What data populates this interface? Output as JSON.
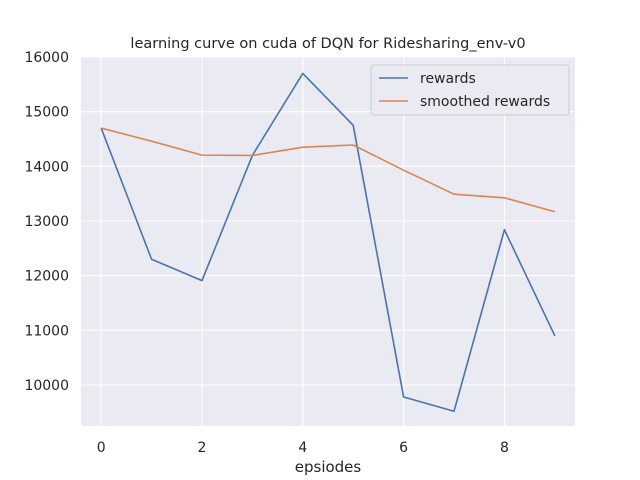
{
  "chart_data": {
    "type": "line",
    "title": "learning curve on cuda of DQN for Ridesharing_env-v0",
    "xlabel": "epsiodes",
    "ylabel": "",
    "x": [
      0,
      1,
      2,
      3,
      4,
      5,
      6,
      7,
      8,
      9
    ],
    "xlim": [
      -0.4,
      9.4
    ],
    "ylim": [
      9250,
      16000
    ],
    "xticks": [
      0,
      2,
      4,
      6,
      8
    ],
    "yticks": [
      10000,
      11000,
      12000,
      13000,
      14000,
      15000,
      16000
    ],
    "grid": true,
    "legend_position": "top-right",
    "series": [
      {
        "name": "rewards",
        "color": "#4c72b0",
        "values": [
          14700,
          12300,
          11910,
          14200,
          15700,
          14750,
          9780,
          9520,
          12840,
          10900
        ]
      },
      {
        "name": "smoothed rewards",
        "color": "#dd8452",
        "values": [
          14700,
          14460,
          14205,
          14200,
          14350,
          14390,
          13930,
          13490,
          13425,
          13170
        ]
      }
    ]
  },
  "colors": {
    "plot_background": "#eaeaf2",
    "grid": "#ffffff",
    "text": "#262626"
  }
}
